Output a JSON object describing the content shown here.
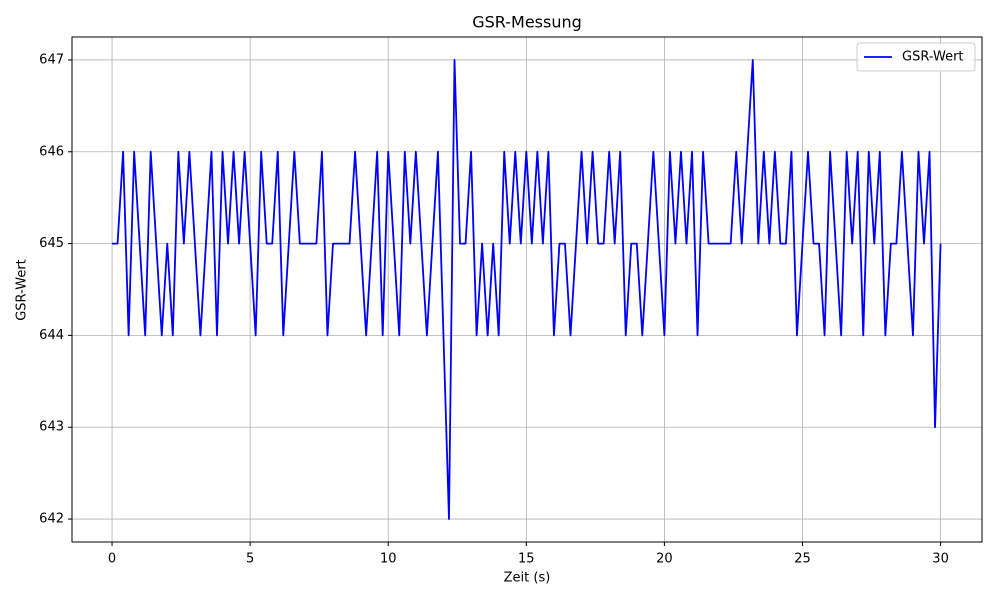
{
  "chart_data": {
    "type": "line",
    "title": "GSR-Messung",
    "x_label": "Zeit (s)",
    "y_label": "GSR-Wert",
    "x": [
      0,
      0.2,
      0.4,
      0.6,
      0.8,
      1.0,
      1.2,
      1.4,
      1.6,
      1.8,
      2.0,
      2.2,
      2.4,
      2.6,
      2.8,
      3.0,
      3.2,
      3.4,
      3.6,
      3.8,
      4.0,
      4.2,
      4.4,
      4.6,
      4.8,
      5.0,
      5.2,
      5.4,
      5.6,
      5.8,
      6.0,
      6.2,
      6.4,
      6.6,
      6.8,
      7.0,
      7.2,
      7.4,
      7.6,
      7.8,
      8.0,
      8.2,
      8.4,
      8.6,
      8.8,
      9.0,
      9.2,
      9.4,
      9.6,
      9.8,
      10.0,
      10.2,
      10.4,
      10.6,
      10.8,
      11.0,
      11.2,
      11.4,
      11.6,
      11.8,
      12.0,
      12.2,
      12.4,
      12.6,
      12.8,
      13.0,
      13.2,
      13.4,
      13.6,
      13.8,
      14.0,
      14.2,
      14.4,
      14.6,
      14.8,
      15.0,
      15.2,
      15.4,
      15.6,
      15.8,
      16.0,
      16.2,
      16.4,
      16.6,
      16.8,
      17.0,
      17.2,
      17.4,
      17.6,
      17.8,
      18.0,
      18.2,
      18.4,
      18.6,
      18.8,
      19.0,
      19.2,
      19.4,
      19.6,
      19.8,
      20.0,
      20.2,
      20.4,
      20.6,
      20.8,
      21.0,
      21.2,
      21.4,
      21.6,
      21.8,
      22.0,
      22.2,
      22.4,
      22.6,
      22.8,
      23.0,
      23.2,
      23.4,
      23.6,
      23.8,
      24.0,
      24.2,
      24.4,
      24.6,
      24.8,
      25.0,
      25.2,
      25.4,
      25.6,
      25.8,
      26.0,
      26.2,
      26.4,
      26.6,
      26.8,
      27.0,
      27.2,
      27.4,
      27.6,
      27.8,
      28.0,
      28.2,
      28.4,
      28.6,
      28.8,
      29.0,
      29.2,
      29.4,
      29.6,
      29.8,
      30.0
    ],
    "series": [
      {
        "name": "GSR-Wert",
        "color": "#0000ff",
        "values": [
          645,
          645,
          646,
          644,
          646,
          645,
          644,
          646,
          645,
          644,
          645,
          644,
          646,
          645,
          646,
          645,
          644,
          645,
          646,
          644,
          646,
          645,
          646,
          645,
          646,
          645,
          644,
          646,
          645,
          645,
          646,
          644,
          645,
          646,
          645,
          645,
          645,
          645,
          646,
          644,
          645,
          645,
          645,
          645,
          646,
          645,
          644,
          645,
          646,
          644,
          646,
          645,
          644,
          646,
          645,
          646,
          645,
          644,
          645,
          646,
          644,
          642,
          647,
          645,
          645,
          646,
          644,
          645,
          644,
          645,
          644,
          646,
          645,
          646,
          645,
          646,
          645,
          646,
          645,
          646,
          644,
          645,
          645,
          644,
          645,
          646,
          645,
          646,
          645,
          645,
          646,
          645,
          646,
          644,
          645,
          645,
          644,
          645,
          646,
          645,
          644,
          646,
          645,
          646,
          645,
          646,
          644,
          646,
          645,
          645,
          645,
          645,
          645,
          646,
          645,
          646,
          647,
          645,
          646,
          645,
          646,
          645,
          645,
          646,
          644,
          645,
          646,
          645,
          645,
          644,
          646,
          645,
          644,
          646,
          645,
          646,
          644,
          646,
          645,
          646,
          644,
          645,
          645,
          646,
          645,
          644,
          646,
          645,
          646,
          643,
          645
        ]
      }
    ],
    "xlim": [
      -1.45,
      31.5
    ],
    "ylim": [
      641.75,
      647.25
    ],
    "xticks": [
      0,
      5,
      10,
      15,
      20,
      25,
      30
    ],
    "yticks": [
      642,
      643,
      644,
      645,
      646,
      647
    ],
    "grid": true,
    "legend_position": "upper right"
  }
}
